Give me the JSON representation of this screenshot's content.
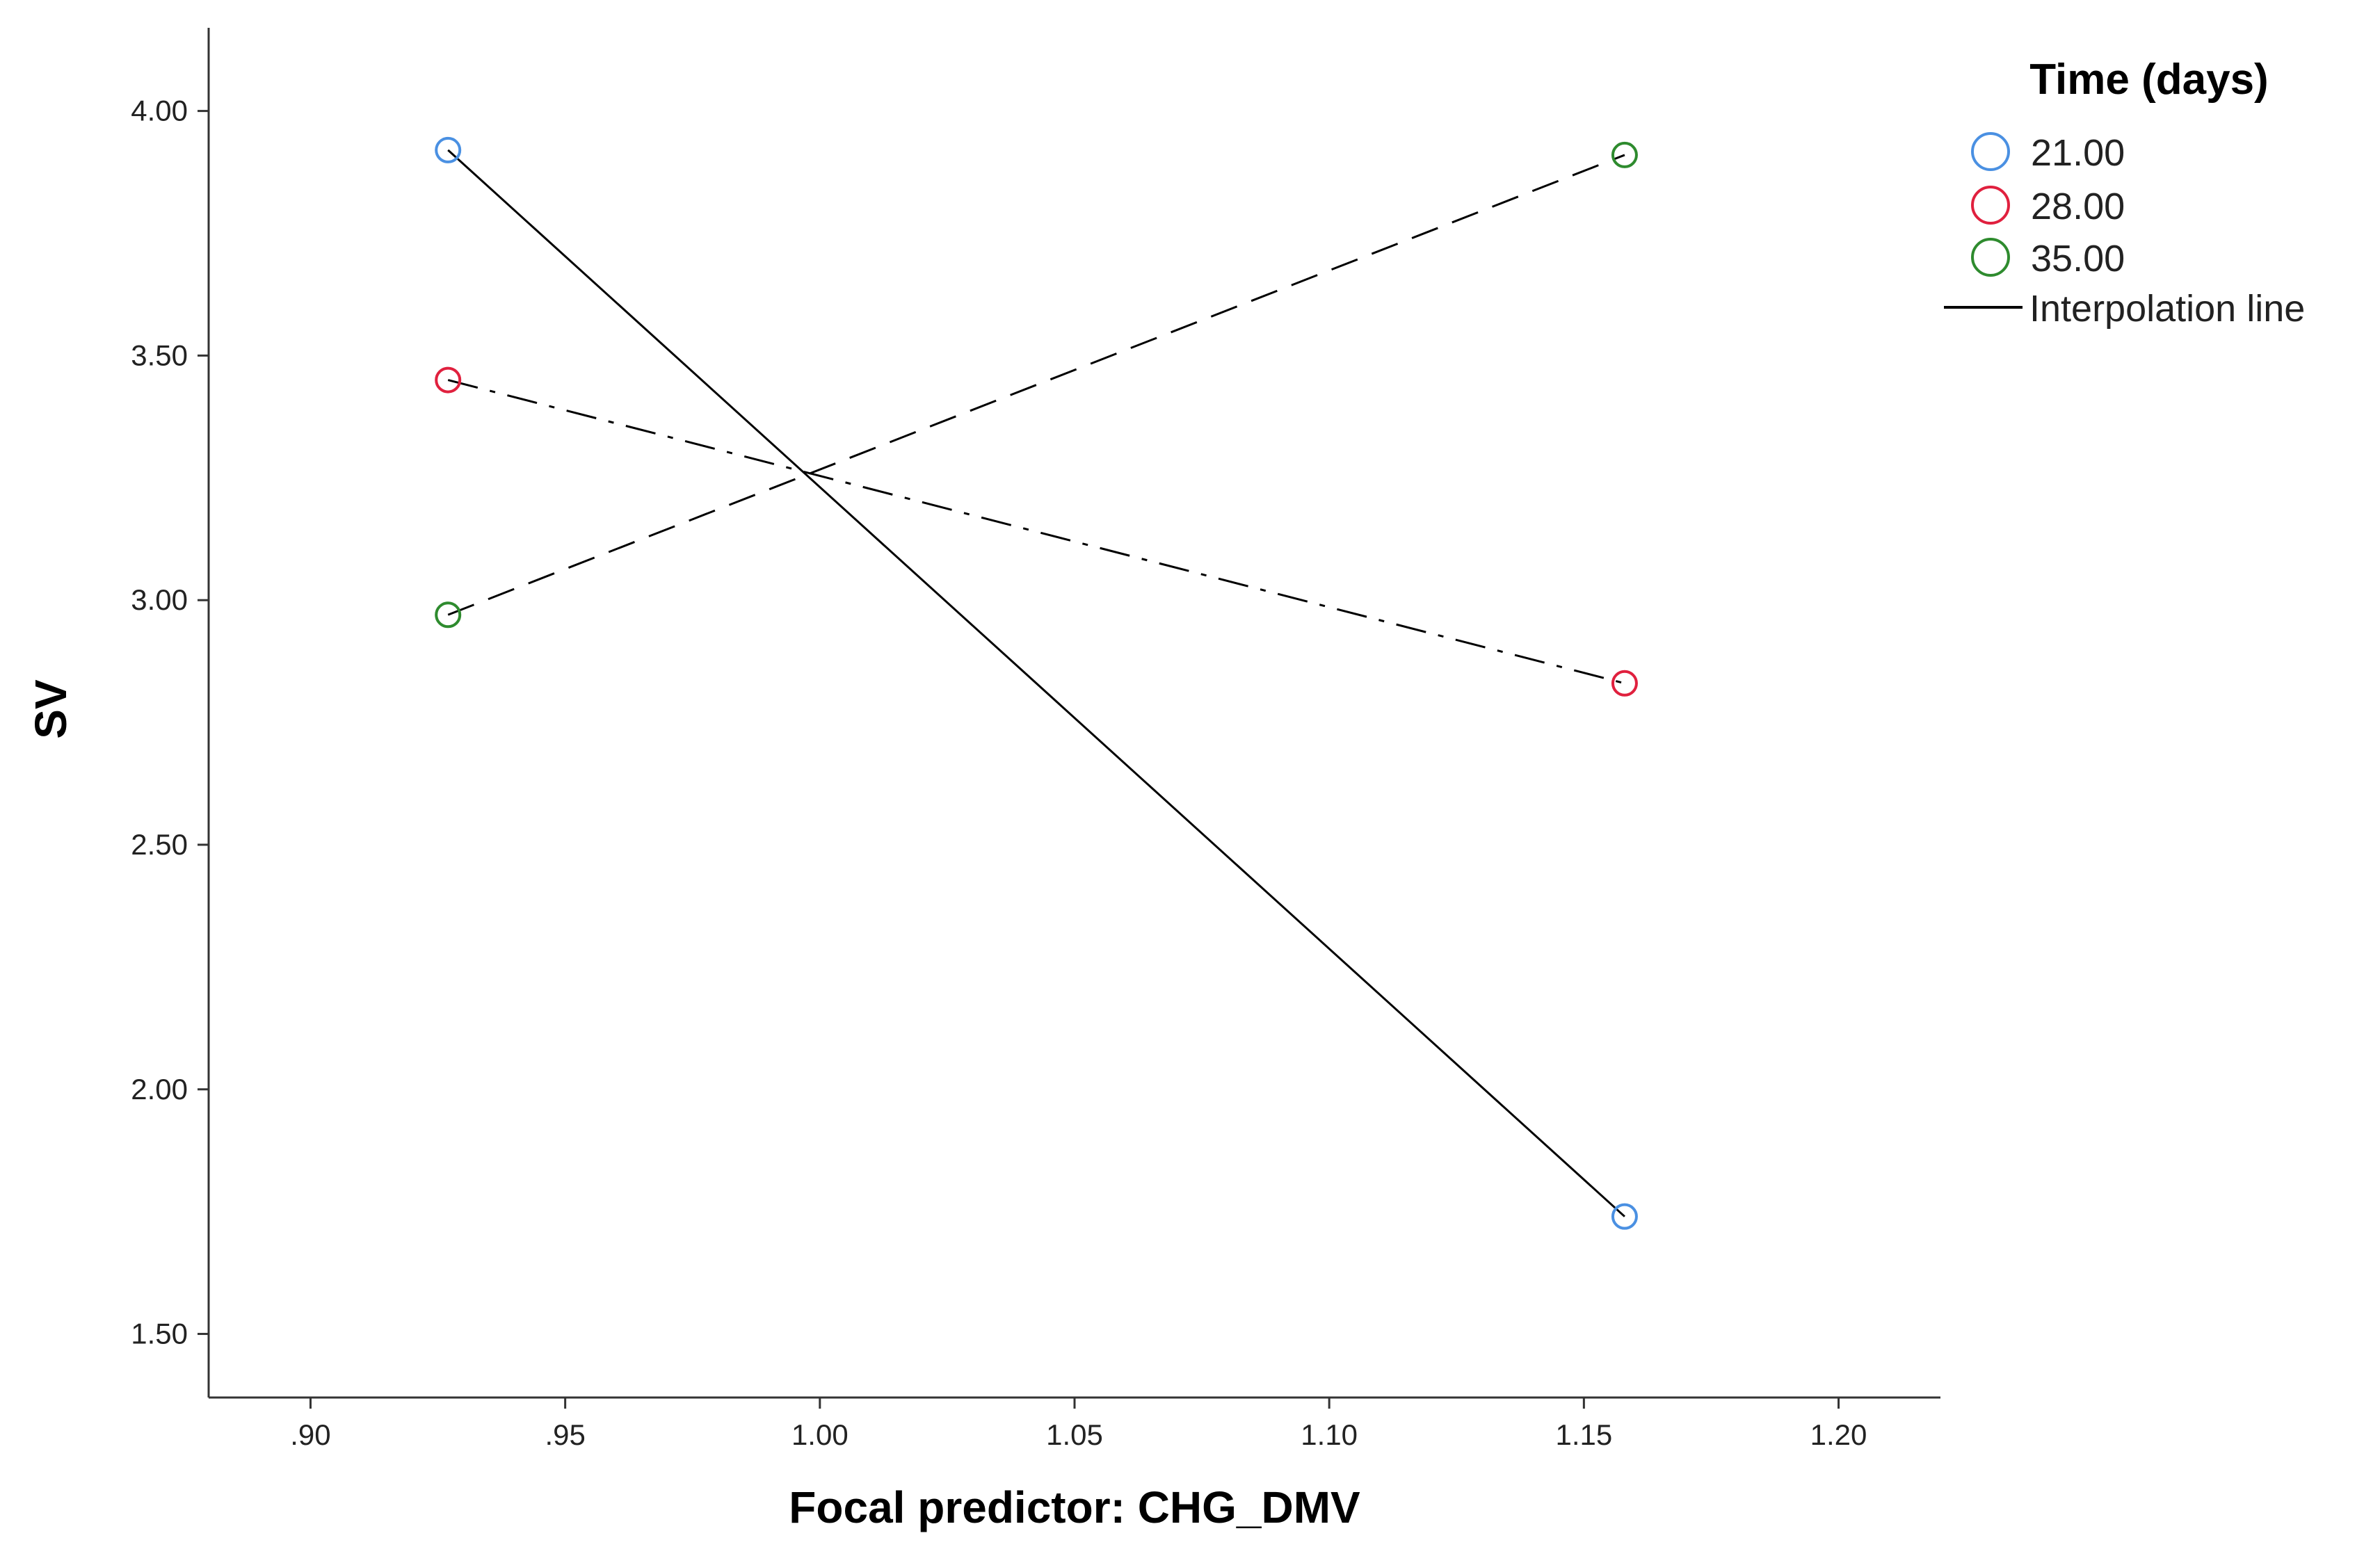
{
  "chart_data": {
    "type": "line",
    "xlabel": "Focal predictor: CHG_DMV",
    "ylabel": "SV",
    "xlim": [
      0.88,
      1.22
    ],
    "ylim": [
      1.37,
      4.17
    ],
    "x_ticks": [
      0.9,
      0.95,
      1.0,
      1.05,
      1.1,
      1.15,
      1.2
    ],
    "x_tick_labels": [
      ".90",
      ".95",
      "1.00",
      "1.05",
      "1.10",
      "1.15",
      "1.20"
    ],
    "y_ticks": [
      1.5,
      2.0,
      2.5,
      3.0,
      3.5,
      4.0
    ],
    "y_tick_labels": [
      "1.50",
      "2.00",
      "2.50",
      "3.00",
      "3.50",
      "4.00"
    ],
    "grid": false,
    "legend": {
      "title": "Time (days)",
      "placement": "top-right",
      "interpolation_label": "Interpolation line"
    },
    "series": [
      {
        "name": "21.00",
        "color": "#4a90e2",
        "dash": "solid",
        "x": [
          0.927,
          1.158
        ],
        "y": [
          3.92,
          1.74
        ]
      },
      {
        "name": "28.00",
        "color": "#e0203e",
        "dash": "dashdot",
        "x": [
          0.927,
          1.158
        ],
        "y": [
          3.45,
          2.83
        ]
      },
      {
        "name": "35.00",
        "color": "#2e8b2e",
        "dash": "dashed",
        "x": [
          0.927,
          1.158
        ],
        "y": [
          2.97,
          3.91
        ]
      }
    ]
  }
}
